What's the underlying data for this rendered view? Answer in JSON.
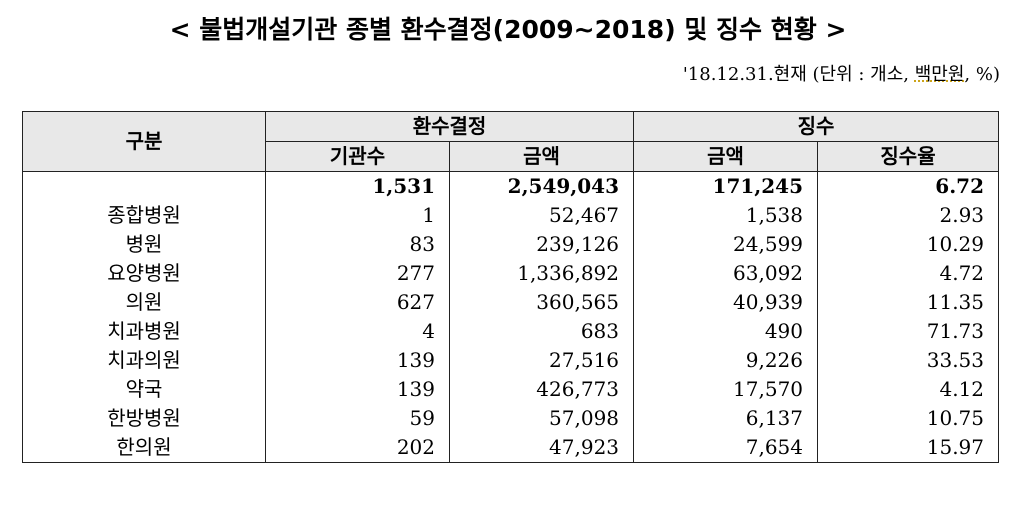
{
  "title": "< 불법개설기관 종별 환수결정(2009~2018) 및 징수 현황 >",
  "meta": {
    "date_prefix": "'18.12.31.현재 (단위 : 개소, ",
    "unit_underlined": "백만원",
    "suffix": ", %)"
  },
  "header": {
    "category": "구분",
    "group_recovery": "환수결정",
    "group_collection": "징수",
    "col_institutions": "기관수",
    "col_amount_recovery": "금액",
    "col_amount_collection": "금액",
    "col_rate": "징수율"
  },
  "total": {
    "label": "",
    "institutions": "1,531",
    "recovery_amount": "2,549,043",
    "collection_amount": "171,245",
    "rate": "6.72"
  },
  "rows": [
    {
      "label": "종합병원",
      "institutions": "1",
      "recovery_amount": "52,467",
      "collection_amount": "1,538",
      "rate": "2.93"
    },
    {
      "label": "병원",
      "institutions": "83",
      "recovery_amount": "239,126",
      "collection_amount": "24,599",
      "rate": "10.29"
    },
    {
      "label": "요양병원",
      "institutions": "277",
      "recovery_amount": "1,336,892",
      "collection_amount": "63,092",
      "rate": "4.72"
    },
    {
      "label": "의원",
      "institutions": "627",
      "recovery_amount": "360,565",
      "collection_amount": "40,939",
      "rate": "11.35"
    },
    {
      "label": "치과병원",
      "institutions": "4",
      "recovery_amount": "683",
      "collection_amount": "490",
      "rate": "71.73"
    },
    {
      "label": "치과의원",
      "institutions": "139",
      "recovery_amount": "27,516",
      "collection_amount": "9,226",
      "rate": "33.53"
    },
    {
      "label": "약국",
      "institutions": "139",
      "recovery_amount": "426,773",
      "collection_amount": "17,570",
      "rate": "4.12"
    },
    {
      "label": "한방병원",
      "institutions": "59",
      "recovery_amount": "57,098",
      "collection_amount": "6,137",
      "rate": "10.75"
    },
    {
      "label": "한의원",
      "institutions": "202",
      "recovery_amount": "47,923",
      "collection_amount": "7,654",
      "rate": "15.97"
    }
  ]
}
